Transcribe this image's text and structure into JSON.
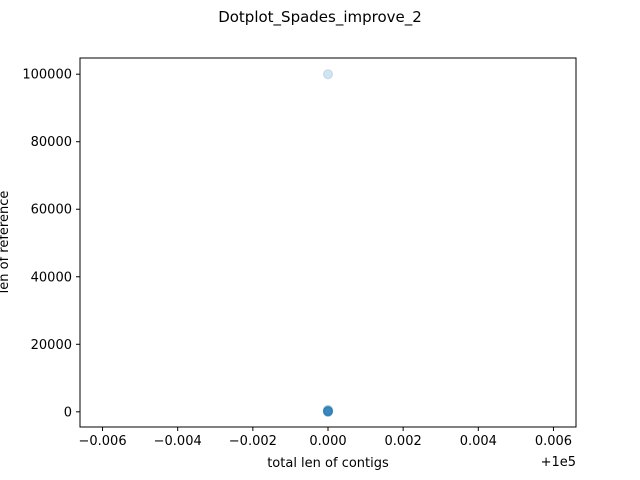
{
  "chart_data": {
    "type": "scatter",
    "title": "Dotplot_Spades_improve_2",
    "xlabel": "total len of contigs",
    "ylabel": "len of reference",
    "x_offset_label": "+1e5",
    "xlim": [
      -0.0066,
      0.0066
    ],
    "ylim": [
      -4500,
      104800
    ],
    "x_ticks": [
      -0.006,
      -0.004,
      -0.002,
      0.0,
      0.002,
      0.004,
      0.006
    ],
    "x_tick_labels": [
      "−0.006",
      "−0.004",
      "−0.002",
      "0.000",
      "0.002",
      "0.004",
      "0.006"
    ],
    "y_ticks": [
      0,
      20000,
      40000,
      60000,
      80000,
      100000
    ],
    "y_tick_labels": [
      "0",
      "20000",
      "40000",
      "60000",
      "80000",
      "100000"
    ],
    "grid": false,
    "point_color": "#1f77b4",
    "point_alpha": 0.2,
    "series": [
      {
        "points": [
          {
            "x": 0.0,
            "y": 100000
          },
          {
            "x": 0.0,
            "y": 600
          },
          {
            "x": 0.0,
            "y": 400
          },
          {
            "x": 0.0,
            "y": 300
          },
          {
            "x": 0.0,
            "y": 200
          },
          {
            "x": 0.0,
            "y": 150
          },
          {
            "x": 0.0,
            "y": 100
          },
          {
            "x": 0.0,
            "y": 50
          },
          {
            "x": 0.0,
            "y": 20
          },
          {
            "x": 0.0,
            "y": 0
          }
        ]
      }
    ]
  }
}
